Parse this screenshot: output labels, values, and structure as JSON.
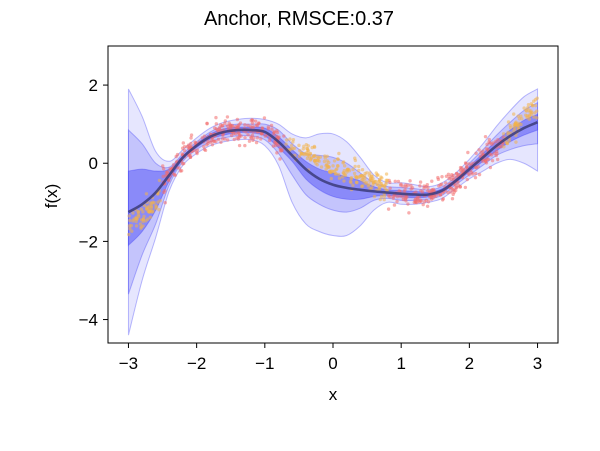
{
  "chart_data": {
    "type": "line",
    "title": "Anchor, RMSCE:0.37",
    "xlabel": "x",
    "ylabel": "f(x)",
    "xlim": [
      -3.3,
      3.3
    ],
    "ylim": [
      -4.6,
      3.0
    ],
    "xticks": [
      -3,
      -2,
      -1,
      0,
      1,
      2,
      3
    ],
    "xtick_labels": [
      "−3",
      "−2",
      "−1",
      "0",
      "1",
      "2",
      "3"
    ],
    "yticks": [
      -4,
      -2,
      0,
      2
    ],
    "ytick_labels": [
      "−4",
      "−2",
      "0",
      "2"
    ],
    "grid": false,
    "legend": "none",
    "colors": {
      "mean_line": "#3b3b7a",
      "band": "#3a3af5",
      "train_points": "#f26b6b",
      "test_points": "#f2b24a"
    },
    "mean": {
      "x": [
        -3.0,
        -2.8,
        -2.6,
        -2.4,
        -2.2,
        -2.0,
        -1.8,
        -1.6,
        -1.4,
        -1.2,
        -1.0,
        -0.8,
        -0.6,
        -0.4,
        -0.2,
        0.0,
        0.2,
        0.4,
        0.6,
        0.8,
        1.0,
        1.2,
        1.4,
        1.6,
        1.8,
        2.0,
        2.2,
        2.4,
        2.6,
        2.8,
        3.0
      ],
      "y": [
        -1.25,
        -1.05,
        -0.75,
        -0.3,
        0.15,
        0.45,
        0.68,
        0.8,
        0.85,
        0.85,
        0.8,
        0.55,
        0.2,
        -0.15,
        -0.4,
        -0.55,
        -0.63,
        -0.68,
        -0.72,
        -0.75,
        -0.78,
        -0.8,
        -0.8,
        -0.7,
        -0.45,
        -0.15,
        0.15,
        0.45,
        0.7,
        0.9,
        1.05
      ]
    },
    "bands": [
      {
        "level": "outer",
        "upper": [
          1.9,
          1.2,
          0.3,
          0.05,
          0.35,
          0.65,
          0.9,
          1.05,
          1.12,
          1.15,
          1.12,
          1.0,
          0.75,
          0.65,
          0.75,
          0.75,
          0.55,
          0.15,
          -0.3,
          -0.5,
          -0.5,
          -0.55,
          -0.6,
          -0.5,
          -0.25,
          0.1,
          0.5,
          0.95,
          1.35,
          1.7,
          1.9
        ],
        "lower": [
          -4.4,
          -3.0,
          -1.9,
          -0.7,
          -0.05,
          0.25,
          0.45,
          0.55,
          0.6,
          0.6,
          0.45,
          -0.05,
          -1.0,
          -1.55,
          -1.75,
          -1.85,
          -1.85,
          -1.6,
          -1.2,
          -1.0,
          -1.05,
          -1.05,
          -1.0,
          -0.9,
          -0.65,
          -0.4,
          -0.2,
          0.0,
          0.1,
          0.0,
          -0.2
        ]
      },
      {
        "level": "middle",
        "upper": [
          0.85,
          0.5,
          0.0,
          -0.1,
          0.25,
          0.55,
          0.8,
          0.95,
          1.0,
          1.0,
          1.0,
          0.85,
          0.5,
          0.25,
          0.2,
          0.15,
          0.0,
          -0.25,
          -0.5,
          -0.6,
          -0.62,
          -0.65,
          -0.68,
          -0.6,
          -0.35,
          0.0,
          0.35,
          0.72,
          1.05,
          1.35,
          1.55
        ],
        "lower": [
          -3.35,
          -2.35,
          -1.55,
          -0.55,
          0.05,
          0.35,
          0.55,
          0.65,
          0.7,
          0.7,
          0.6,
          0.25,
          -0.3,
          -0.8,
          -1.05,
          -1.2,
          -1.25,
          -1.15,
          -0.95,
          -0.9,
          -0.95,
          -0.95,
          -0.92,
          -0.82,
          -0.55,
          -0.3,
          -0.05,
          0.2,
          0.35,
          0.45,
          0.5
        ]
      },
      {
        "level": "inner",
        "upper": [
          -0.2,
          -0.15,
          -0.2,
          -0.15,
          0.2,
          0.5,
          0.75,
          0.88,
          0.92,
          0.92,
          0.9,
          0.68,
          0.35,
          0.05,
          -0.15,
          -0.25,
          -0.35,
          -0.45,
          -0.6,
          -0.68,
          -0.7,
          -0.72,
          -0.74,
          -0.65,
          -0.4,
          -0.08,
          0.25,
          0.58,
          0.85,
          1.1,
          1.25
        ],
        "lower": [
          -2.1,
          -1.75,
          -1.2,
          -0.45,
          0.1,
          0.4,
          0.62,
          0.72,
          0.78,
          0.78,
          0.7,
          0.4,
          0.05,
          -0.4,
          -0.68,
          -0.85,
          -0.92,
          -0.92,
          -0.85,
          -0.82,
          -0.86,
          -0.88,
          -0.86,
          -0.75,
          -0.5,
          -0.22,
          0.05,
          0.32,
          0.55,
          0.72,
          0.85
        ]
      }
    ],
    "point_series": [
      {
        "role": "train",
        "ranges": [
          [
            -2.5,
            -0.7
          ],
          [
            0.8,
            2.5
          ]
        ],
        "noise": 0.3,
        "count": 480
      },
      {
        "role": "test",
        "ranges": [
          [
            -3.0,
            -2.5
          ],
          [
            -0.7,
            0.8
          ],
          [
            2.5,
            3.0
          ]
        ],
        "noise": 0.28,
        "count": 340
      }
    ],
    "true_function": "sin(x) + 0.02*x^3 style cubic-sine, points scattered around it"
  }
}
